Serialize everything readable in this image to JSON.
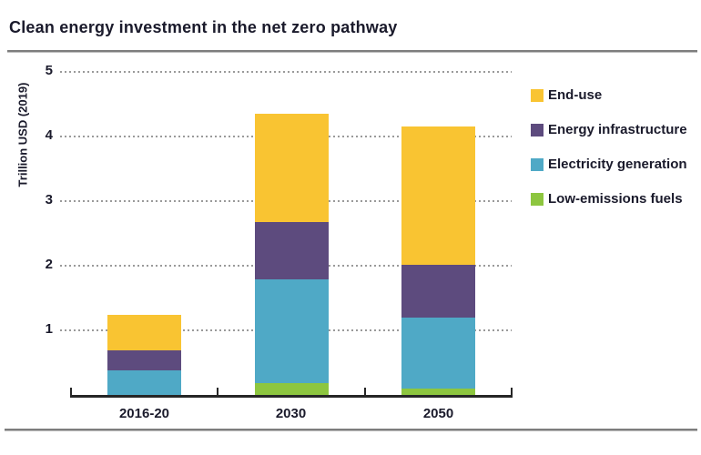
{
  "title": "Clean energy investment in the net zero pathway",
  "colors": {
    "text": "#1a1a2b",
    "grid_dots": "#9a9a9a",
    "axis_line": "#262626",
    "divider_gray": "#7d7d7d",
    "background": "#ffffff",
    "end_use": "#F9C432",
    "energy_infrastructure": "#5D4B7E",
    "electricity_generation": "#4FA9C6",
    "low_emissions_fuels": "#8DC63F"
  },
  "chart_data": {
    "type": "bar",
    "stacked": true,
    "title": "Clean energy investment in the net zero pathway",
    "ylabel": "Trillion USD (2019)",
    "xlabel": "",
    "ylim": [
      0,
      5
    ],
    "yticks": [
      1,
      2,
      3,
      4,
      5
    ],
    "grid": "horizontal dotted",
    "legend_position": "right",
    "categories": [
      "2016-20",
      "2030",
      "2050"
    ],
    "series": [
      {
        "name": "Low-emissions fuels",
        "color": "#8DC63F",
        "values": [
          0.0,
          0.18,
          0.1
        ]
      },
      {
        "name": "Electricity generation",
        "color": "#4FA9C6",
        "values": [
          0.38,
          1.61,
          1.1
        ]
      },
      {
        "name": "Energy infrastructure",
        "color": "#5D4B7E",
        "values": [
          0.31,
          0.89,
          0.82
        ]
      },
      {
        "name": "End-use",
        "color": "#F9C432",
        "values": [
          0.55,
          1.67,
          2.14
        ]
      }
    ],
    "totals": [
      1.24,
      4.35,
      4.16
    ],
    "legend": [
      {
        "label": "End-use",
        "color": "#F9C432"
      },
      {
        "label": "Energy infrastructure",
        "color": "#5D4B7E"
      },
      {
        "label": "Electricity generation",
        "color": "#4FA9C6"
      },
      {
        "label": "Low-emissions fuels",
        "color": "#8DC63F"
      }
    ]
  }
}
